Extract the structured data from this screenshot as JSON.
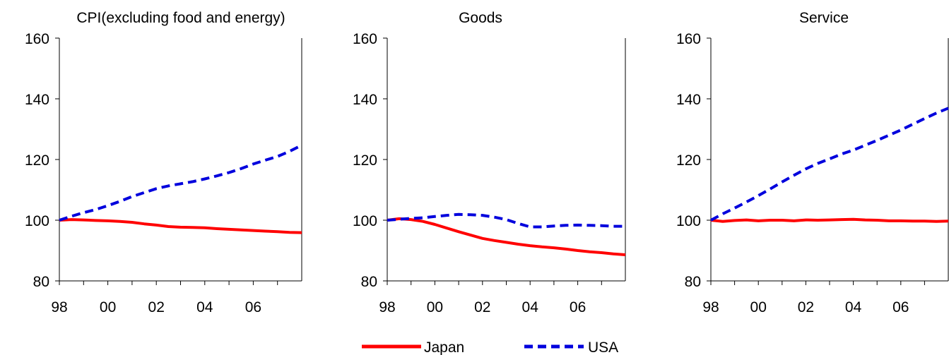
{
  "chart_data": [
    {
      "type": "line",
      "title": "CPI(excluding food and energy)",
      "xlabel": "",
      "ylabel": "",
      "x_range": [
        1998,
        2008
      ],
      "x_ticks": [
        "98",
        "00",
        "02",
        "04",
        "06"
      ],
      "ylim": [
        80,
        160
      ],
      "y_ticks": [
        80,
        100,
        120,
        140,
        160
      ],
      "grid": false,
      "series": [
        {
          "name": "Japan",
          "color": "#ff0000",
          "style": "solid",
          "x": [
            1998,
            1998.5,
            1999,
            1999.5,
            2000,
            2000.5,
            2001,
            2001.5,
            2002,
            2002.5,
            2003,
            2003.5,
            2004,
            2004.5,
            2005,
            2005.5,
            2006,
            2006.5,
            2007,
            2007.5,
            2008
          ],
          "y": [
            100,
            100.2,
            100.1,
            99.9,
            99.8,
            99.6,
            99.3,
            98.8,
            98.4,
            97.9,
            97.7,
            97.6,
            97.5,
            97.2,
            97.0,
            96.8,
            96.6,
            96.4,
            96.2,
            96.0,
            95.9
          ]
        },
        {
          "name": "USA",
          "color": "#0000dd",
          "style": "dashed",
          "x": [
            1998,
            1998.5,
            1999,
            1999.5,
            2000,
            2000.5,
            2001,
            2001.5,
            2002,
            2002.5,
            2003,
            2003.5,
            2004,
            2004.5,
            2005,
            2005.5,
            2006,
            2006.5,
            2007,
            2007.5,
            2008
          ],
          "y": [
            100,
            101.3,
            102.5,
            103.5,
            104.8,
            106.2,
            107.8,
            109.1,
            110.4,
            111.3,
            112.0,
            112.7,
            113.6,
            114.6,
            115.7,
            117.0,
            118.5,
            119.8,
            121.0,
            122.7,
            124.7
          ]
        }
      ]
    },
    {
      "type": "line",
      "title": "Goods",
      "xlabel": "",
      "ylabel": "",
      "x_range": [
        1998,
        2008
      ],
      "x_ticks": [
        "98",
        "00",
        "02",
        "04",
        "06"
      ],
      "ylim": [
        80,
        160
      ],
      "y_ticks": [
        80,
        100,
        120,
        140,
        160
      ],
      "grid": false,
      "series": [
        {
          "name": "Japan",
          "color": "#ff0000",
          "style": "solid",
          "x": [
            1998,
            1998.5,
            1999,
            1999.5,
            2000,
            2000.5,
            2001,
            2001.5,
            2002,
            2002.5,
            2003,
            2003.5,
            2004,
            2004.5,
            2005,
            2005.5,
            2006,
            2006.5,
            2007,
            2007.5,
            2008
          ],
          "y": [
            100,
            100.5,
            100.2,
            99.6,
            98.6,
            97.4,
            96.2,
            95.1,
            94.0,
            93.3,
            92.7,
            92.1,
            91.6,
            91.2,
            90.9,
            90.5,
            90.0,
            89.6,
            89.3,
            88.9,
            88.6
          ]
        },
        {
          "name": "USA",
          "color": "#0000dd",
          "style": "dashed",
          "x": [
            1998,
            1998.5,
            1999,
            1999.5,
            2000,
            2000.5,
            2001,
            2001.5,
            2002,
            2002.5,
            2003,
            2003.5,
            2004,
            2004.5,
            2005,
            2005.5,
            2006,
            2006.5,
            2007,
            2007.5,
            2008
          ],
          "y": [
            100,
            100.3,
            100.6,
            100.8,
            101.2,
            101.6,
            101.9,
            101.8,
            101.6,
            101.0,
            100.2,
            98.9,
            97.8,
            97.8,
            98.1,
            98.3,
            98.4,
            98.3,
            98.2,
            98.0,
            98.0
          ]
        }
      ]
    },
    {
      "type": "line",
      "title": "Service",
      "xlabel": "",
      "ylabel": "",
      "x_range": [
        1998,
        2008
      ],
      "x_ticks": [
        "98",
        "00",
        "02",
        "04",
        "06"
      ],
      "ylim": [
        80,
        160
      ],
      "y_ticks": [
        80,
        100,
        120,
        140,
        160
      ],
      "grid": false,
      "series": [
        {
          "name": "Japan",
          "color": "#ff0000",
          "style": "solid",
          "x": [
            1998,
            1998.5,
            1999,
            1999.5,
            2000,
            2000.5,
            2001,
            2001.5,
            2002,
            2002.5,
            2003,
            2003.5,
            2004,
            2004.5,
            2005,
            2005.5,
            2006,
            2006.5,
            2007,
            2007.5,
            2008
          ],
          "y": [
            100,
            99.6,
            99.9,
            100.1,
            99.8,
            100.0,
            100.0,
            99.8,
            100.1,
            100.0,
            100.1,
            100.2,
            100.3,
            100.1,
            100.0,
            99.8,
            99.8,
            99.7,
            99.7,
            99.6,
            99.7
          ]
        },
        {
          "name": "USA",
          "color": "#0000dd",
          "style": "dashed",
          "x": [
            1998,
            1998.5,
            1999,
            1999.5,
            2000,
            2000.5,
            2001,
            2001.5,
            2002,
            2002.5,
            2003,
            2003.5,
            2004,
            2004.5,
            2005,
            2005.5,
            2006,
            2006.5,
            2007,
            2007.5,
            2008
          ],
          "y": [
            100,
            102.1,
            104.0,
            106.0,
            108.1,
            110.3,
            112.6,
            114.8,
            116.9,
            118.7,
            120.2,
            121.8,
            123.1,
            124.7,
            126.3,
            128.0,
            129.7,
            131.6,
            133.5,
            135.3,
            136.9
          ]
        }
      ]
    }
  ],
  "legend": {
    "placement": "bottom-center",
    "items": [
      {
        "label": "Japan",
        "color": "#ff0000",
        "style": "solid"
      },
      {
        "label": "USA",
        "color": "#0000dd",
        "style": "dashed"
      }
    ]
  }
}
